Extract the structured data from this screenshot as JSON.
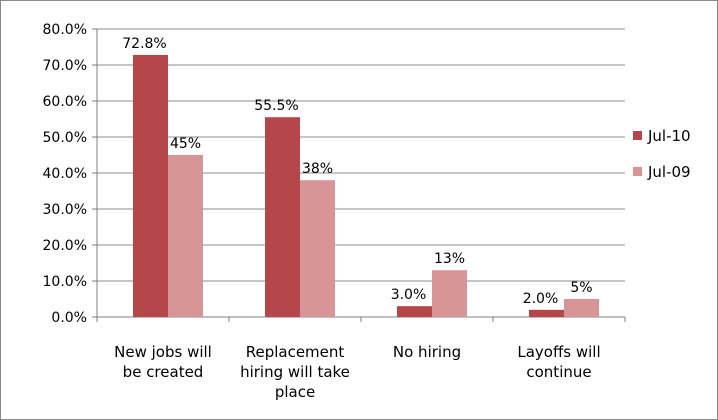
{
  "chart_data": {
    "type": "bar",
    "title": "",
    "xlabel": "",
    "ylabel": "",
    "ylim": [
      0,
      80
    ],
    "ytick_step": 10,
    "ytick_format": "percent_1dp",
    "grid": true,
    "legend_position": "right",
    "categories": [
      [
        "New jobs will",
        "be created"
      ],
      [
        "Replacement",
        "hiring will take",
        "place"
      ],
      [
        "No hiring"
      ],
      [
        "Layoffs will",
        "continue"
      ]
    ],
    "series": [
      {
        "name": "Jul-10",
        "color": "#b5474a",
        "values": [
          72.8,
          55.5,
          3.0,
          2.0
        ],
        "labels": [
          "72.8%",
          "55.5%",
          "3.0%",
          "2.0%"
        ]
      },
      {
        "name": "Jul-09",
        "color": "#d89596",
        "values": [
          45,
          38,
          13,
          5
        ],
        "labels": [
          "45%",
          "38%",
          "13%",
          "5%"
        ]
      }
    ]
  }
}
